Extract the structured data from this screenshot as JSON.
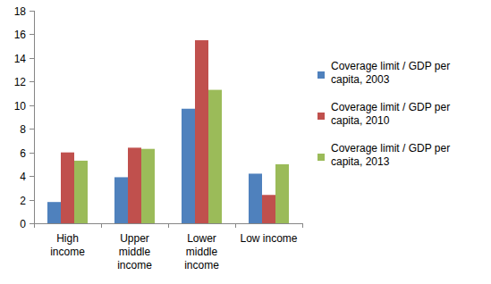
{
  "chart_data": {
    "type": "bar",
    "categories": [
      "High income",
      "Upper middle income",
      "Lower middle income",
      "Low income"
    ],
    "series": [
      {
        "name": "Coverage limit / GDP per capita, 2003",
        "color": "#4f81bd",
        "values": [
          1.8,
          3.9,
          9.7,
          4.2
        ]
      },
      {
        "name": "Coverage limit / GDP per capita, 2010",
        "color": "#c0504d",
        "values": [
          6.0,
          6.4,
          15.5,
          2.4
        ]
      },
      {
        "name": "Coverage limit / GDP per capita, 2013",
        "color": "#9bbb59",
        "values": [
          5.3,
          6.3,
          11.3,
          5.0
        ]
      }
    ],
    "ylim": [
      0,
      18
    ],
    "yticks": [
      0,
      2,
      4,
      6,
      8,
      10,
      12,
      14,
      16,
      18
    ],
    "grid": false,
    "legend": "right"
  }
}
